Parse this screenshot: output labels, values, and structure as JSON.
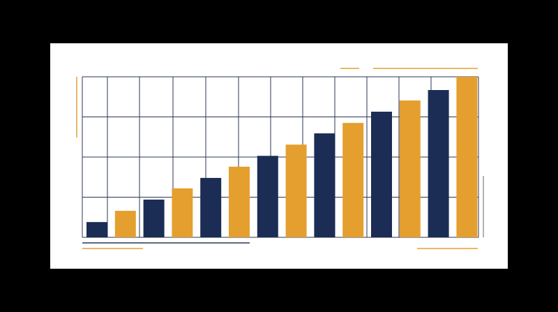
{
  "chart_data": {
    "type": "bar",
    "categories": [
      null,
      null,
      null,
      null,
      null,
      null,
      null,
      null,
      null,
      null,
      null,
      null,
      null,
      null
    ],
    "values": [
      0.38,
      0.66,
      0.94,
      1.22,
      1.48,
      1.76,
      2.03,
      2.31,
      2.59,
      2.85,
      3.13,
      3.41,
      3.67,
      4.0
    ],
    "colors": [
      "#1b2d55",
      "#e59f2f",
      "#1b2d55",
      "#e59f2f",
      "#1b2d55",
      "#e59f2f",
      "#1b2d55",
      "#e59f2f",
      "#1b2d55",
      "#e59f2f",
      "#1b2d55",
      "#e59f2f",
      "#1b2d55",
      "#e59f2f"
    ],
    "ylim": [
      0,
      4
    ],
    "yticks": [
      0,
      1,
      2,
      3,
      4
    ],
    "grid": true
  }
}
